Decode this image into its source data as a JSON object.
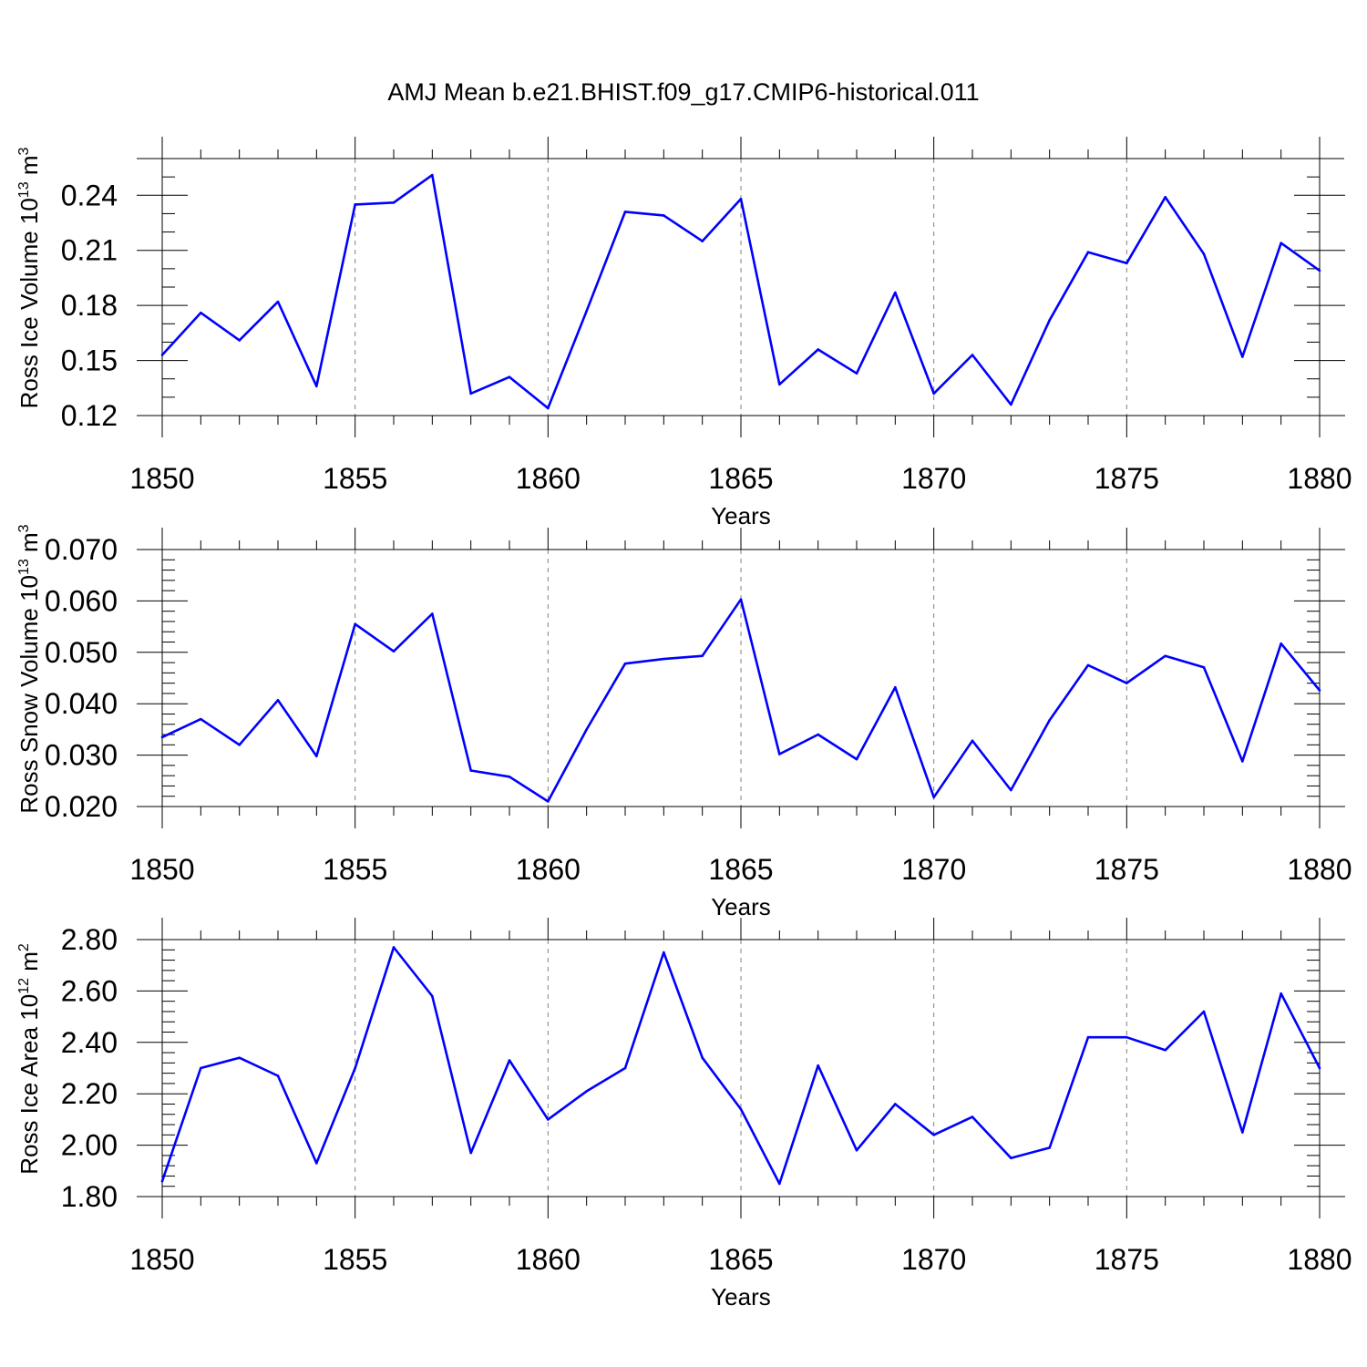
{
  "figure": {
    "title": "AMJ Mean b.e21.BHIST.f09_g17.CMIP6-historical.011"
  },
  "colors": {
    "line": "#0000ff",
    "grid": "#808080",
    "axis": "#000000"
  },
  "chart_data": [
    {
      "type": "line",
      "title": "",
      "xlabel": "Years",
      "ylabel": {
        "main": "Ross Ice Volume 10",
        "sup": "13",
        "unit": " m",
        "unit_sup": "3"
      },
      "x": [
        1850,
        1851,
        1852,
        1853,
        1854,
        1855,
        1856,
        1857,
        1858,
        1859,
        1860,
        1861,
        1862,
        1863,
        1864,
        1865,
        1866,
        1867,
        1868,
        1869,
        1870,
        1871,
        1872,
        1873,
        1874,
        1875,
        1876,
        1877,
        1878,
        1879,
        1880
      ],
      "y": [
        0.153,
        0.176,
        0.161,
        0.182,
        0.136,
        0.235,
        0.236,
        0.251,
        0.132,
        0.141,
        0.124,
        0.177,
        0.231,
        0.229,
        0.215,
        0.238,
        0.137,
        0.156,
        0.143,
        0.187,
        0.132,
        0.153,
        0.126,
        0.172,
        0.209,
        0.203,
        0.239,
        0.208,
        0.152,
        0.214,
        0.199
      ],
      "xlim": [
        1850,
        1880
      ],
      "ylim": [
        0.12,
        0.26
      ],
      "xticks": [
        "1850",
        "1855",
        "1860",
        "1865",
        "1870",
        "1875",
        "1880"
      ],
      "yticks": [
        "0.12",
        "0.15",
        "0.18",
        "0.21",
        "0.24"
      ],
      "ytick_values": [
        0.12,
        0.15,
        0.18,
        0.21,
        0.24
      ],
      "yminor_step": 0.01,
      "grid": "dashed vertical at major x ticks"
    },
    {
      "type": "line",
      "title": "",
      "xlabel": "Years",
      "ylabel": {
        "main": "Ross Snow Volume 10",
        "sup": "13",
        "unit": " m",
        "unit_sup": "3"
      },
      "x": [
        1850,
        1851,
        1852,
        1853,
        1854,
        1855,
        1856,
        1857,
        1858,
        1859,
        1860,
        1861,
        1862,
        1863,
        1864,
        1865,
        1866,
        1867,
        1868,
        1869,
        1870,
        1871,
        1872,
        1873,
        1874,
        1875,
        1876,
        1877,
        1878,
        1879,
        1880
      ],
      "y": [
        0.0335,
        0.037,
        0.032,
        0.0407,
        0.0298,
        0.0555,
        0.0502,
        0.0575,
        0.027,
        0.0258,
        0.021,
        0.035,
        0.0478,
        0.0487,
        0.0493,
        0.0603,
        0.0302,
        0.034,
        0.0292,
        0.0432,
        0.0218,
        0.0328,
        0.0232,
        0.0368,
        0.0475,
        0.044,
        0.0493,
        0.0471,
        0.0288,
        0.0517,
        0.0426
      ],
      "xlim": [
        1850,
        1880
      ],
      "ylim": [
        0.02,
        0.07
      ],
      "xticks": [
        "1850",
        "1855",
        "1860",
        "1865",
        "1870",
        "1875",
        "1880"
      ],
      "yticks": [
        "0.020",
        "0.030",
        "0.040",
        "0.050",
        "0.060",
        "0.070"
      ],
      "ytick_values": [
        0.02,
        0.03,
        0.04,
        0.05,
        0.06,
        0.07
      ],
      "yminor_step": 0.002,
      "grid": "dashed vertical at major x ticks"
    },
    {
      "type": "line",
      "title": "",
      "xlabel": "Years",
      "ylabel": {
        "main": "Ross Ice Area 10",
        "sup": "12",
        "unit": " m",
        "unit_sup": "2"
      },
      "x": [
        1850,
        1851,
        1852,
        1853,
        1854,
        1855,
        1856,
        1857,
        1858,
        1859,
        1860,
        1861,
        1862,
        1863,
        1864,
        1865,
        1866,
        1867,
        1868,
        1869,
        1870,
        1871,
        1872,
        1873,
        1874,
        1875,
        1876,
        1877,
        1878,
        1879,
        1880
      ],
      "y": [
        1.86,
        2.3,
        2.34,
        2.27,
        1.93,
        2.3,
        2.77,
        2.58,
        1.97,
        2.33,
        2.1,
        2.21,
        2.3,
        2.75,
        2.34,
        2.14,
        1.85,
        2.31,
        1.98,
        2.16,
        2.04,
        2.11,
        1.95,
        1.99,
        2.42,
        2.42,
        2.37,
        2.52,
        2.05,
        2.59,
        2.3
      ],
      "xlim": [
        1850,
        1880
      ],
      "ylim": [
        1.8,
        2.8
      ],
      "xticks": [
        "1850",
        "1855",
        "1860",
        "1865",
        "1870",
        "1875",
        "1880"
      ],
      "yticks": [
        "1.80",
        "2.00",
        "2.20",
        "2.40",
        "2.60",
        "2.80"
      ],
      "ytick_values": [
        1.8,
        2.0,
        2.2,
        2.4,
        2.6,
        2.8
      ],
      "yminor_step": 0.04,
      "grid": "dashed vertical at major x ticks"
    }
  ]
}
